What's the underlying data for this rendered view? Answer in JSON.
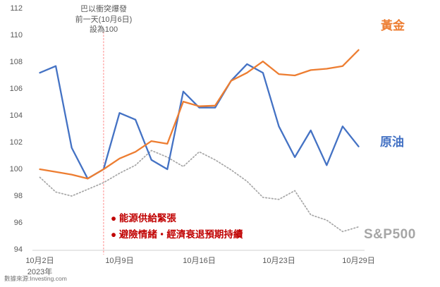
{
  "chart_data": {
    "type": "line",
    "title": "",
    "x_axis": {
      "num_points": 21,
      "tick_indices": [
        0,
        5,
        10,
        15,
        20
      ],
      "tick_labels": [
        "10月2日",
        "10月9日",
        "10月16日",
        "10月23日",
        "10月29日"
      ],
      "year_label": "2023年"
    },
    "y_axis": {
      "min": 94,
      "max": 112,
      "ticks": [
        94,
        96,
        98,
        100,
        102,
        104,
        106,
        108,
        110,
        112
      ]
    },
    "grid": "off",
    "series": [
      {
        "name": "S&P500",
        "color": "#a6a6a6",
        "line_style": "dotted",
        "values": [
          99.4,
          98.3,
          98.0,
          98.5,
          99.0,
          99.7,
          100.3,
          101.4,
          100.9,
          100.2,
          101.3,
          100.7,
          99.95,
          99.1,
          97.9,
          97.75,
          98.4,
          96.6,
          96.2,
          95.35,
          95.7
        ]
      },
      {
        "name": "原油",
        "color": "#4472c4",
        "line_style": "solid",
        "values": [
          107.2,
          107.7,
          101.6,
          99.3,
          100.0,
          104.2,
          103.7,
          100.7,
          100.0,
          105.8,
          104.6,
          104.6,
          106.6,
          107.85,
          107.2,
          103.2,
          100.9,
          102.9,
          100.3,
          103.2,
          101.7
        ]
      },
      {
        "name": "黃金",
        "color": "#ed7d31",
        "line_style": "solid",
        "values": [
          100.0,
          99.8,
          99.6,
          99.3,
          100.0,
          100.8,
          101.3,
          102.1,
          101.9,
          105.05,
          104.7,
          104.75,
          106.6,
          107.2,
          108.05,
          107.1,
          107.0,
          107.4,
          107.5,
          107.7,
          108.9
        ]
      }
    ],
    "reference_line": {
      "x_index": 4,
      "color": "#ff7a7a",
      "annotation_lines": [
        "巴以衝突爆發",
        "前一天(10月6日)",
        "設為100"
      ]
    },
    "callouts": [
      "● 能源供給緊張",
      "● 避險情緒・經濟衰退預期持續"
    ],
    "callout_color": "#c00000",
    "axis_color": "#d9d9d9",
    "tick_text_color": "#595959"
  },
  "footer": {
    "source": "數據來源:Investing.com"
  }
}
